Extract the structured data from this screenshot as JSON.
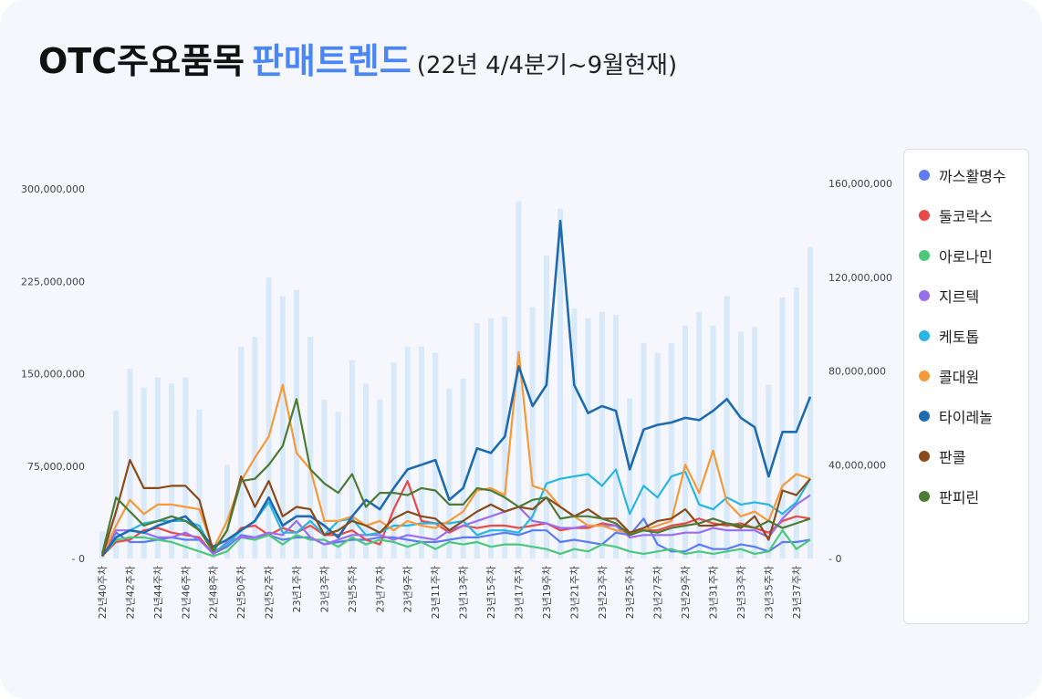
{
  "chart_data": {
    "type": "bar-line",
    "title": "OTC주요품목",
    "title_highlight": "판매트렌드",
    "subtitle": "(22년 4/4분기~9월현재)",
    "categories": [
      "22년40주차",
      null,
      "22년42주차",
      null,
      "22년44주차",
      null,
      "22년46주차",
      null,
      "22년48주차",
      null,
      "22년50주차",
      null,
      "22년52주차",
      null,
      "23년1주차",
      null,
      "23년3주차",
      null,
      "23년5주차",
      null,
      "23년7주차",
      null,
      "23년9주차",
      null,
      "23년11주차",
      null,
      "23년13주차",
      null,
      "23년15주차",
      null,
      "23년17주차",
      null,
      "23년19주차",
      null,
      "23년21주차",
      null,
      "23년23주차",
      null,
      "23년25주차",
      null,
      "23년27주차",
      null,
      "23년29주차",
      null,
      "23년31주차",
      null,
      "23년33주차",
      null,
      "23년35주차",
      null,
      "23년37주차",
      null
    ],
    "ylim": [
      0,
      300000000
    ],
    "yticks": [
      {
        "value": 0,
        "label": "- 0"
      },
      {
        "value": 75000000,
        "label": "75,000,000"
      },
      {
        "value": 150000000,
        "label": "150,000,000"
      },
      {
        "value": 225000000,
        "label": "225,000,000"
      },
      {
        "value": 300000000,
        "label": "300,000,000"
      }
    ],
    "y2lim": [
      0,
      160000000
    ],
    "y2ticks": [
      {
        "value": 0,
        "label": "- 0"
      },
      {
        "value": 40000000,
        "label": "40,000,000"
      },
      {
        "value": 80000000,
        "label": "80,000,000"
      },
      {
        "value": 120000000,
        "label": "120,000,000"
      },
      {
        "value": 160000000,
        "label": "160,000,000"
      }
    ],
    "legend": "right",
    "series": [
      {
        "type": "bar",
        "axis": "y",
        "color": "#d8e9fa",
        "values": [
          22000000,
          120000000,
          154000000,
          139000000,
          147000000,
          142000000,
          147000000,
          121000000,
          9000000,
          76000000,
          172000000,
          180000000,
          228000000,
          213000000,
          218000000,
          180000000,
          129000000,
          119000000,
          161000000,
          142000000,
          129000000,
          159000000,
          172000000,
          172000000,
          167000000,
          138000000,
          146000000,
          191000000,
          195000000,
          196000000,
          290000000,
          204000000,
          246000000,
          284000000,
          203000000,
          195000000,
          200000000,
          198000000,
          130000000,
          175000000,
          167000000,
          175000000,
          189000000,
          200000000,
          189000000,
          213000000,
          184000000,
          188000000,
          141000000,
          212000000,
          220000000,
          253000000
        ]
      },
      {
        "type": "line",
        "axis": "y2",
        "name": "까스활명수",
        "color": "#5b7cf5",
        "values": [
          1000000,
          11000000,
          7000000,
          7000000,
          8000000,
          9000000,
          8000000,
          8000000,
          2000000,
          5000000,
          10000000,
          9000000,
          10000000,
          8000000,
          9000000,
          9000000,
          6000000,
          7000000,
          8000000,
          8000000,
          9000000,
          9000000,
          8000000,
          7000000,
          7000000,
          8000000,
          9000000,
          9000000,
          10000000,
          11000000,
          10000000,
          12000000,
          12000000,
          7000000,
          8000000,
          7000000,
          6000000,
          11000000,
          10000000,
          17000000,
          6000000,
          3000000,
          3000000,
          6000000,
          4000000,
          4000000,
          6000000,
          5000000,
          3000000,
          7000000,
          7000000,
          8000000
        ]
      },
      {
        "type": "line",
        "axis": "y2",
        "name": "둘코락스",
        "color": "#e84a4a",
        "values": [
          1000000,
          7000000,
          8000000,
          12000000,
          13000000,
          11000000,
          10000000,
          9000000,
          2000000,
          6000000,
          13000000,
          14000000,
          10000000,
          13000000,
          11000000,
          14000000,
          10000000,
          10000000,
          12000000,
          8000000,
          6000000,
          21000000,
          33000000,
          16000000,
          15000000,
          11000000,
          14000000,
          13000000,
          14000000,
          14000000,
          13000000,
          14000000,
          15000000,
          12000000,
          13000000,
          13000000,
          15000000,
          14000000,
          11000000,
          12000000,
          12000000,
          14000000,
          15000000,
          17000000,
          15000000,
          14000000,
          15000000,
          13000000,
          11000000,
          16000000,
          18000000,
          17000000
        ]
      },
      {
        "type": "line",
        "axis": "y2",
        "name": "아로나민",
        "color": "#4cc87a",
        "values": [
          1000000,
          8000000,
          9000000,
          9000000,
          8000000,
          7000000,
          5000000,
          3000000,
          1000000,
          3000000,
          9000000,
          8000000,
          10000000,
          6000000,
          10000000,
          8000000,
          8000000,
          5000000,
          9000000,
          6000000,
          8000000,
          7000000,
          5000000,
          7000000,
          4000000,
          7000000,
          6000000,
          7000000,
          5000000,
          6000000,
          6000000,
          5000000,
          4000000,
          2000000,
          4000000,
          3000000,
          6000000,
          5000000,
          3000000,
          2000000,
          3000000,
          4000000,
          2000000,
          3000000,
          2000000,
          3000000,
          4000000,
          2000000,
          3000000,
          12000000,
          4000000,
          8000000
        ]
      },
      {
        "type": "line",
        "axis": "y2",
        "name": "지르텍",
        "color": "#9b6ef0",
        "values": [
          1000000,
          12000000,
          12000000,
          11000000,
          9000000,
          9000000,
          11000000,
          8000000,
          2000000,
          7000000,
          9000000,
          9000000,
          11000000,
          10000000,
          16000000,
          9000000,
          6000000,
          8000000,
          10000000,
          10000000,
          10000000,
          8000000,
          10000000,
          9000000,
          8000000,
          12000000,
          14000000,
          16000000,
          18000000,
          20000000,
          22000000,
          16000000,
          15000000,
          13000000,
          13000000,
          14000000,
          14000000,
          14000000,
          9000000,
          10000000,
          10000000,
          10000000,
          11000000,
          11000000,
          13000000,
          12000000,
          12000000,
          12000000,
          9000000,
          17000000,
          23000000,
          27000000
        ]
      },
      {
        "type": "line",
        "axis": "y2",
        "name": "케토톱",
        "color": "#29b6e0",
        "values": [
          1000000,
          9000000,
          12000000,
          15000000,
          16000000,
          16000000,
          16000000,
          14000000,
          3000000,
          6000000,
          12000000,
          16000000,
          24000000,
          11000000,
          11000000,
          16000000,
          10000000,
          16000000,
          17000000,
          10000000,
          11000000,
          14000000,
          14000000,
          15000000,
          15000000,
          15000000,
          16000000,
          10000000,
          12000000,
          12000000,
          11000000,
          18000000,
          32000000,
          34000000,
          35000000,
          36000000,
          31000000,
          38000000,
          19000000,
          31000000,
          26000000,
          35000000,
          37000000,
          23000000,
          21000000,
          26000000,
          23000000,
          24000000,
          23000000,
          19000000,
          24000000,
          34000000
        ]
      },
      {
        "type": "line",
        "axis": "y2",
        "name": "콜대원",
        "color": "#f59a3a",
        "values": [
          1000000,
          14000000,
          25000000,
          19000000,
          23000000,
          23000000,
          22000000,
          21000000,
          4000000,
          16000000,
          33000000,
          43000000,
          52000000,
          74000000,
          45000000,
          38000000,
          16000000,
          16000000,
          18000000,
          14000000,
          16000000,
          12000000,
          16000000,
          14000000,
          13000000,
          16000000,
          20000000,
          29000000,
          30000000,
          27000000,
          88000000,
          31000000,
          29000000,
          22000000,
          18000000,
          14000000,
          14000000,
          12000000,
          11000000,
          12000000,
          14000000,
          16000000,
          40000000,
          28000000,
          46000000,
          24000000,
          18000000,
          20000000,
          16000000,
          31000000,
          36000000,
          34000000
        ]
      },
      {
        "type": "line",
        "axis": "y2",
        "name": "타이레놀",
        "color": "#1f6bb0",
        "values": [
          1000000,
          9000000,
          12000000,
          11000000,
          14000000,
          16000000,
          18000000,
          12000000,
          5000000,
          8000000,
          12000000,
          16000000,
          26000000,
          14000000,
          18000000,
          18000000,
          14000000,
          9000000,
          18000000,
          25000000,
          21000000,
          30000000,
          38000000,
          40000000,
          42000000,
          25000000,
          30000000,
          47000000,
          45000000,
          52000000,
          82000000,
          65000000,
          74000000,
          144000000,
          74000000,
          62000000,
          65000000,
          63000000,
          38000000,
          55000000,
          57000000,
          58000000,
          60000000,
          59000000,
          63000000,
          68000000,
          60000000,
          56000000,
          35000000,
          54000000,
          54000000,
          69000000
        ]
      },
      {
        "type": "line",
        "axis": "y2",
        "name": "판콜",
        "color": "#8b4a1a",
        "values": [
          1000000,
          20000000,
          42000000,
          30000000,
          30000000,
          31000000,
          31000000,
          25000000,
          3000000,
          12000000,
          35000000,
          22000000,
          33000000,
          18000000,
          22000000,
          21000000,
          10000000,
          12000000,
          16000000,
          14000000,
          11000000,
          17000000,
          20000000,
          18000000,
          17000000,
          12000000,
          16000000,
          20000000,
          23000000,
          20000000,
          22000000,
          21000000,
          26000000,
          22000000,
          18000000,
          21000000,
          17000000,
          17000000,
          11000000,
          13000000,
          16000000,
          17000000,
          21000000,
          14000000,
          14000000,
          15000000,
          13000000,
          18000000,
          8000000,
          29000000,
          27000000,
          34000000
        ]
      },
      {
        "type": "line",
        "axis": "y2",
        "name": "판피린",
        "color": "#4d7a35",
        "values": [
          2000000,
          26000000,
          20000000,
          14000000,
          16000000,
          18000000,
          16000000,
          12000000,
          3000000,
          12000000,
          33000000,
          34000000,
          40000000,
          48000000,
          68000000,
          38000000,
          32000000,
          28000000,
          36000000,
          22000000,
          28000000,
          28000000,
          27000000,
          30000000,
          29000000,
          23000000,
          23000000,
          30000000,
          29000000,
          26000000,
          22000000,
          25000000,
          26000000,
          17000000,
          18000000,
          18000000,
          17000000,
          15000000,
          10000000,
          12000000,
          11000000,
          13000000,
          14000000,
          15000000,
          17000000,
          15000000,
          14000000,
          13000000,
          16000000,
          13000000,
          15000000,
          17000000
        ]
      }
    ]
  }
}
